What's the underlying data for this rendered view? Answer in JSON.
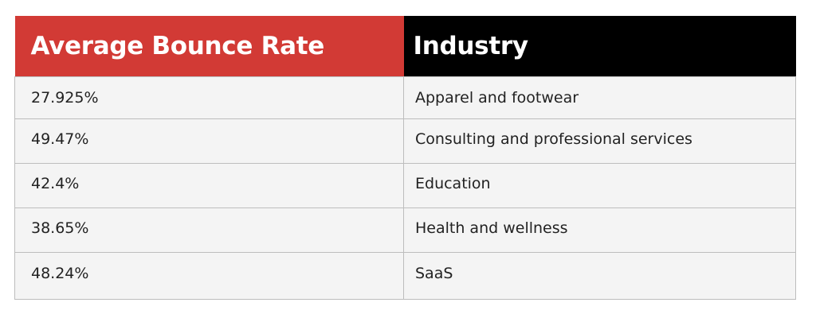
{
  "table": {
    "headers": [
      "Average Bounce Rate",
      "Industry"
    ],
    "rows": [
      [
        "27.925%",
        "Apparel and footwear"
      ],
      [
        "49.47%",
        "Consulting and professional services"
      ],
      [
        "42.4%",
        "Education"
      ],
      [
        "38.65%",
        "Health and wellness"
      ],
      [
        "48.24%",
        "SaaS"
      ]
    ]
  }
}
